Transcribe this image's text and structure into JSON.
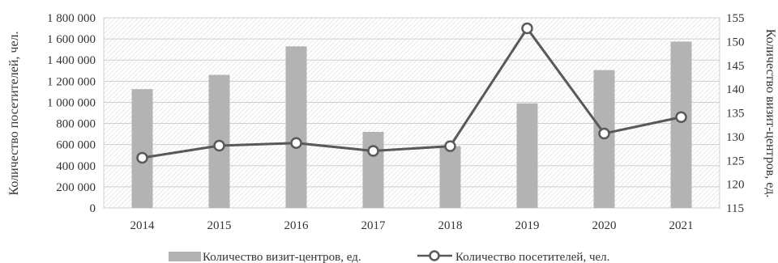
{
  "chart_data": {
    "type": "bar+line",
    "categories": [
      "2014",
      "2015",
      "2016",
      "2017",
      "2018",
      "2019",
      "2020",
      "2021"
    ],
    "series": [
      {
        "name": "Количество визит-центров, ед.",
        "type": "bar",
        "axis": "right",
        "values": [
          140,
          143,
          149,
          131,
          128,
          137,
          144,
          150
        ],
        "color": "#b3b3b3"
      },
      {
        "name": "Количество посетителей, чел.",
        "type": "line",
        "axis": "left",
        "values": [
          475000,
          590000,
          615000,
          540000,
          585000,
          1700000,
          705000,
          860000
        ],
        "color": "#595959"
      }
    ],
    "ylabel_left": "Количество посетителей, чел.",
    "ylabel_right": "Количество визит-центров, ед.",
    "ylim_left": [
      0,
      1800000
    ],
    "ylim_right": [
      115,
      155
    ],
    "yticks_left": [
      "0",
      "200 000",
      "400 000",
      "600 000",
      "800 000",
      "1 000 000",
      "1 200 000",
      "1 400 000",
      "1 600 000",
      "1 800 000"
    ],
    "yticks_right": [
      "115",
      "120",
      "125",
      "130",
      "135",
      "140",
      "145",
      "150",
      "155"
    ],
    "grid": true,
    "background": "hatched",
    "legend_position": "bottom"
  }
}
